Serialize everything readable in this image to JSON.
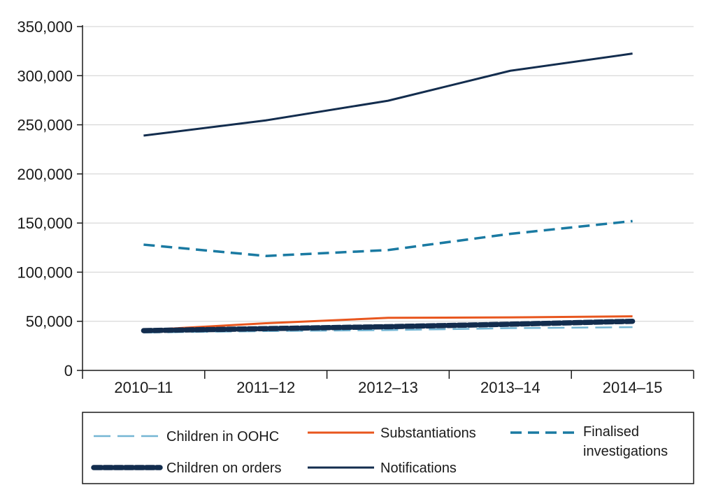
{
  "chart_data": {
    "type": "line",
    "title": "",
    "xlabel": "",
    "ylabel": "",
    "categories": [
      "2010–11",
      "2011–12",
      "2012–13",
      "2013–14",
      "2014–15"
    ],
    "ylim": [
      0,
      350000
    ],
    "yticks": [
      0,
      50000,
      100000,
      150000,
      200000,
      250000,
      300000,
      350000
    ],
    "ytick_labels": [
      "0",
      "50,000",
      "100,000",
      "150,000",
      "200,000",
      "250,000",
      "300,000",
      "350,000"
    ],
    "grid": "horizontal",
    "legend_position": "bottom",
    "series": [
      {
        "name": "Children in OOHC",
        "values": [
          38500,
          40000,
          41000,
          43000,
          44000
        ],
        "color": "#74b6d4",
        "style": "long-dash"
      },
      {
        "name": "Substantiations",
        "values": [
          41000,
          48000,
          53500,
          54000,
          55000
        ],
        "color": "#e8561e",
        "style": "solid"
      },
      {
        "name": "Finalised investigations",
        "legend_lines": [
          "Finalised",
          "investigations"
        ],
        "values": [
          128000,
          116500,
          122500,
          139000,
          152000
        ],
        "color": "#1a7aa2",
        "style": "dash"
      },
      {
        "name": "Children on orders",
        "values": [
          40500,
          42500,
          44500,
          47000,
          50000
        ],
        "color": "#132d4e",
        "style": "thick-dash"
      },
      {
        "name": "Notifications",
        "values": [
          239000,
          254500,
          274500,
          305000,
          322500
        ],
        "color": "#132d4e",
        "style": "solid"
      }
    ]
  }
}
